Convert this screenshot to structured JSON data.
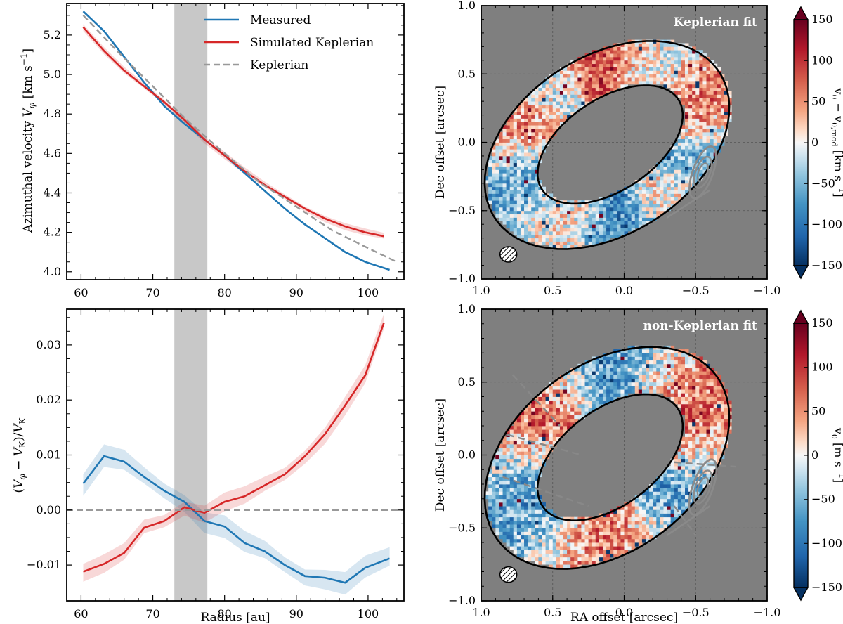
{
  "chart_data": [
    {
      "type": "line",
      "panel": "top-left",
      "xlabel": "",
      "ylabel": "Azimuthal velocity V_φ [km s⁻¹]",
      "ylabel_parts": {
        "main": "Azimuthal velocity ",
        "var": "V",
        "sub": "φ",
        "unit": " [km s",
        "exp": "−1",
        "close": "]"
      },
      "xlim": [
        58,
        105
      ],
      "ylim": [
        3.96,
        5.36
      ],
      "xticks": [
        60,
        70,
        80,
        90,
        100
      ],
      "yticks": [
        4.0,
        4.2,
        4.4,
        4.6,
        4.8,
        5.0,
        5.2
      ],
      "ytick_labels": [
        "4.0",
        "4.2",
        "4.4",
        "4.6",
        "4.8",
        "5.0",
        "5.2"
      ],
      "shaded_band": [
        73,
        77.6
      ],
      "legend": "top-right",
      "series": [
        {
          "name": "Measured",
          "color": "#1f77b4",
          "style": "solid",
          "x": [
            60.3,
            63.2,
            66.0,
            68.8,
            71.6,
            74.4,
            77.2,
            80.0,
            82.8,
            85.6,
            88.4,
            91.2,
            94.0,
            96.8,
            99.6,
            103.0
          ],
          "y": [
            5.32,
            5.22,
            5.09,
            4.96,
            4.84,
            4.75,
            4.67,
            4.59,
            4.5,
            4.41,
            4.32,
            4.24,
            4.17,
            4.1,
            4.05,
            4.01
          ]
        },
        {
          "name": "Simulated Keplerian",
          "color": "#d62728",
          "style": "solid",
          "x": [
            60.3,
            63.2,
            66.0,
            68.8,
            71.6,
            74.4,
            77.2,
            80.0,
            82.8,
            85.6,
            88.4,
            91.2,
            94.0,
            96.8,
            99.6,
            102.2
          ],
          "y": [
            5.24,
            5.12,
            5.02,
            4.94,
            4.86,
            4.77,
            4.67,
            4.59,
            4.51,
            4.44,
            4.38,
            4.32,
            4.27,
            4.23,
            4.2,
            4.18
          ],
          "band": 0.015
        },
        {
          "name": "Keplerian",
          "color": "#999999",
          "style": "dashed",
          "x": [
            60.3,
            65,
            70,
            75,
            80,
            85,
            90,
            95,
            100,
            104
          ],
          "y": [
            5.3,
            5.12,
            4.94,
            4.76,
            4.6,
            4.45,
            4.33,
            4.21,
            4.12,
            4.05
          ]
        }
      ]
    },
    {
      "type": "line",
      "panel": "bottom-left",
      "xlabel": "Radius [au]",
      "ylabel": "(V_φ − V_K)/V_K",
      "xlim": [
        58,
        105
      ],
      "ylim": [
        -0.0165,
        0.0365
      ],
      "xticks": [
        60,
        70,
        80,
        90,
        100
      ],
      "yticks": [
        -0.01,
        0.0,
        0.01,
        0.02,
        0.03
      ],
      "ytick_labels": [
        "−0.01",
        "0.00",
        "0.01",
        "0.02",
        "0.03"
      ],
      "shaded_band": [
        73,
        77.6
      ],
      "zero_line": 0.0,
      "series": [
        {
          "name": "Measured",
          "color": "#1f77b4",
          "style": "solid",
          "x": [
            60.3,
            63.2,
            66.0,
            68.8,
            71.6,
            74.4,
            77.2,
            80.0,
            82.8,
            85.6,
            88.4,
            91.2,
            94.0,
            96.8,
            99.6,
            103.0
          ],
          "y": [
            0.0048,
            0.0098,
            0.0088,
            0.006,
            0.0035,
            0.0015,
            -0.002,
            -0.003,
            -0.006,
            -0.0075,
            -0.01,
            -0.012,
            -0.0123,
            -0.0132,
            -0.0105,
            -0.0088
          ],
          "band": 0.0017
        },
        {
          "name": "Simulated Keplerian",
          "color": "#d62728",
          "style": "solid",
          "x": [
            60.3,
            63.2,
            66.0,
            68.8,
            71.6,
            74.4,
            77.2,
            80.0,
            82.8,
            85.6,
            88.4,
            91.2,
            94.0,
            96.8,
            99.6,
            102.2
          ],
          "y": [
            -0.0112,
            -0.0098,
            -0.0078,
            -0.0032,
            -0.002,
            0.0005,
            -0.0005,
            0.0015,
            0.0025,
            0.0045,
            0.0065,
            0.0098,
            0.0138,
            0.019,
            0.0245,
            0.034
          ],
          "band": 0.0014
        },
        {
          "name": "Keplerian",
          "color": "#999999",
          "style": "dashed",
          "x": [
            58,
            105
          ],
          "y": [
            0.0,
            0.0
          ]
        }
      ]
    },
    {
      "type": "heatmap",
      "panel": "top-right",
      "title": "Keplerian fit",
      "ylabel": "Dec offset [arcsec]",
      "xlabel_hidden": "RA offset [arcsec]",
      "xlim": [
        1.0,
        -1.0
      ],
      "ylim": [
        -1.0,
        1.0
      ],
      "xticks": [
        1.0,
        0.5,
        0.0,
        -0.5,
        -1.0
      ],
      "xtick_labels": [
        "1.0",
        "0.5",
        "0.0",
        "−0.5",
        "−1.0"
      ],
      "yticks": [
        1.0,
        0.5,
        0.0,
        -0.5,
        -1.0
      ],
      "ytick_labels": [
        "1.0",
        "0.5",
        "0.0",
        "−0.5",
        "−1.0"
      ],
      "colorbar": {
        "label": "v₀ − v₀,mod   [km s⁻¹]",
        "range": [
          -150,
          150
        ],
        "ticks": [
          150,
          100,
          50,
          0,
          -50,
          -100,
          -150
        ],
        "tick_labels": [
          "150",
          "100",
          "50",
          "0",
          "−50",
          "−100",
          "−150"
        ],
        "label_parts": [
          "v",
          "0",
          " − v",
          "0,mod",
          "    [km s",
          "−1",
          "]"
        ]
      },
      "background_color": "#7f7f7f",
      "beam": "bottom-left"
    },
    {
      "type": "heatmap",
      "panel": "bottom-right",
      "title": "non-Keplerian fit",
      "xlabel": "RA offset [arcsec]",
      "ylabel": "Dec offset [arcsec]",
      "xlim": [
        1.0,
        -1.0
      ],
      "ylim": [
        -1.0,
        1.0
      ],
      "xticks": [
        1.0,
        0.5,
        0.0,
        -0.5,
        -1.0
      ],
      "xtick_labels": [
        "1.0",
        "0.5",
        "0.0",
        "−0.5",
        "−1.0"
      ],
      "yticks": [
        1.0,
        0.5,
        0.0,
        -0.5,
        -1.0
      ],
      "ytick_labels": [
        "1.0",
        "0.5",
        "0.0",
        "−0.5",
        "−1.0"
      ],
      "colorbar": {
        "label": "v₀   [m s⁻¹]",
        "range": [
          -150,
          150
        ],
        "ticks": [
          150,
          100,
          50,
          0,
          -50,
          -100,
          -150
        ],
        "tick_labels": [
          "150",
          "100",
          "50",
          "0",
          "−50",
          "−100",
          "−150"
        ],
        "label_parts": [
          "v",
          "0",
          "    [m s",
          "−1",
          "]"
        ]
      },
      "background_color": "#7f7f7f",
      "beam": "bottom-left"
    }
  ]
}
